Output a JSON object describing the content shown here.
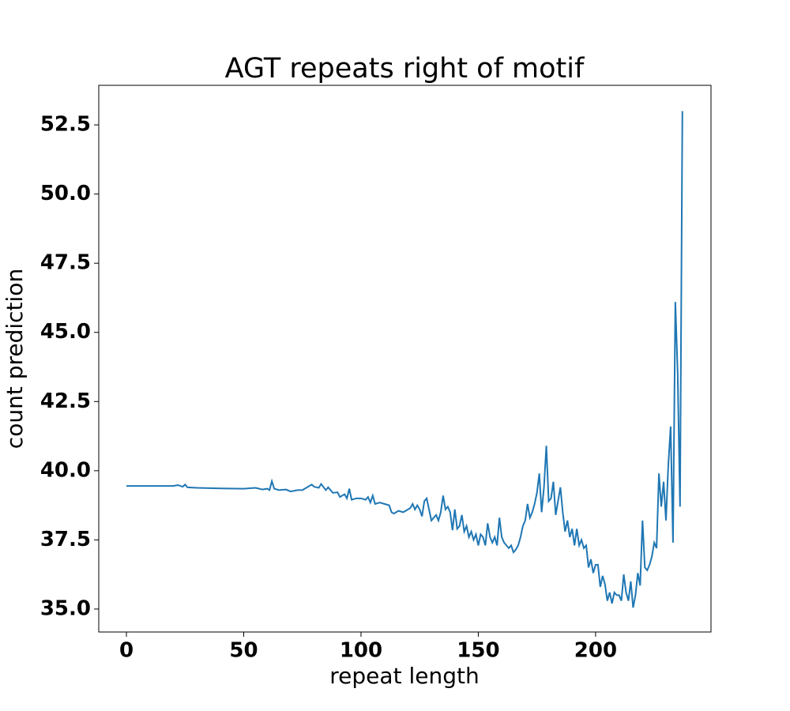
{
  "chart_data": {
    "type": "line",
    "title": "AGT repeats right of motif",
    "xlabel": "repeat length",
    "ylabel": "count prediction",
    "x": [
      0,
      5,
      10,
      15,
      20,
      22,
      24,
      25,
      26,
      30,
      40,
      50,
      55,
      58,
      60,
      61,
      62,
      63,
      65,
      68,
      70,
      73,
      75,
      77,
      79,
      80,
      82,
      83,
      85,
      86,
      88,
      90,
      91,
      93,
      94,
      95,
      96,
      98,
      100,
      102,
      103,
      104,
      105,
      106,
      108,
      110,
      112,
      113,
      114,
      116,
      118,
      120,
      121,
      122,
      123,
      124,
      125,
      126,
      127,
      128,
      129,
      130,
      131,
      132,
      133,
      134,
      135,
      136,
      137,
      138,
      139,
      140,
      141,
      142,
      143,
      144,
      145,
      146,
      147,
      148,
      149,
      150,
      151,
      152,
      153,
      154,
      155,
      156,
      157,
      158,
      159,
      160,
      161,
      162,
      163,
      164,
      165,
      166,
      167,
      168,
      169,
      170,
      171,
      172,
      173,
      174,
      175,
      176,
      177,
      178,
      179,
      180,
      181,
      182,
      183,
      184,
      185,
      186,
      187,
      188,
      189,
      190,
      191,
      192,
      193,
      194,
      195,
      196,
      197,
      198,
      199,
      200,
      201,
      202,
      203,
      204,
      205,
      206,
      207,
      208,
      209,
      210,
      211,
      212,
      213,
      214,
      215,
      216,
      217,
      218,
      219,
      220,
      221,
      222,
      223,
      224,
      225,
      226,
      227,
      228,
      229,
      230,
      231,
      232,
      233,
      234,
      235,
      236,
      237
    ],
    "series": [
      {
        "name": "count prediction",
        "color": "#1f77b4",
        "values": [
          39.45,
          39.45,
          39.45,
          39.45,
          39.45,
          39.48,
          39.42,
          39.5,
          39.4,
          39.38,
          39.36,
          39.35,
          39.38,
          39.32,
          39.35,
          39.3,
          39.62,
          39.35,
          39.3,
          39.32,
          39.25,
          39.3,
          39.3,
          39.4,
          39.5,
          39.42,
          39.38,
          39.52,
          39.3,
          39.4,
          39.2,
          39.22,
          39.05,
          39.15,
          39.0,
          39.35,
          38.95,
          39.0,
          39.0,
          38.95,
          39.05,
          38.85,
          39.1,
          38.8,
          38.85,
          38.8,
          38.75,
          38.5,
          38.45,
          38.55,
          38.5,
          38.6,
          38.65,
          38.8,
          38.6,
          38.75,
          38.6,
          38.35,
          38.9,
          39.0,
          38.6,
          38.2,
          38.3,
          38.4,
          38.2,
          38.5,
          39.1,
          38.6,
          38.7,
          38.5,
          37.85,
          38.6,
          37.9,
          38.0,
          38.4,
          37.8,
          38.0,
          37.6,
          37.8,
          37.5,
          37.7,
          37.3,
          37.7,
          37.6,
          37.3,
          38.1,
          37.6,
          37.4,
          37.6,
          37.3,
          38.3,
          37.6,
          37.4,
          37.3,
          37.2,
          37.3,
          37.05,
          37.15,
          37.3,
          37.6,
          38.0,
          38.2,
          38.8,
          38.3,
          38.5,
          38.8,
          39.2,
          39.9,
          38.5,
          39.4,
          40.9,
          38.9,
          39.0,
          39.6,
          38.4,
          38.9,
          39.4,
          38.5,
          37.8,
          38.2,
          37.6,
          37.9,
          37.3,
          37.9,
          37.3,
          37.5,
          37.2,
          37.3,
          36.5,
          36.8,
          36.3,
          36.6,
          36.6,
          35.8,
          36.2,
          35.9,
          35.3,
          35.6,
          35.2,
          35.6,
          35.5,
          35.5,
          35.3,
          36.25,
          35.6,
          35.3,
          36.0,
          35.05,
          35.5,
          36.3,
          35.85,
          38.2,
          36.5,
          36.4,
          36.6,
          36.9,
          37.4,
          37.2,
          39.9,
          38.7,
          39.6,
          38.2,
          40.2,
          41.6,
          37.4,
          46.1,
          43.5,
          38.7,
          53.0
        ]
      }
    ],
    "xlim": [
      -11.8,
      249.2
    ],
    "ylim": [
      34.17,
      53.93
    ],
    "xticks": [
      0,
      50,
      100,
      150,
      200
    ],
    "yticks": [
      {
        "value": 35,
        "label": "35.0"
      },
      {
        "value": 37.5,
        "label": "37.5"
      },
      {
        "value": 40,
        "label": "40.0"
      },
      {
        "value": 42.5,
        "label": "42.5"
      },
      {
        "value": 45,
        "label": "45.0"
      },
      {
        "value": 47.5,
        "label": "47.5"
      },
      {
        "value": 50,
        "label": "50.0"
      },
      {
        "value": 52.5,
        "label": "52.5"
      }
    ],
    "grid": false
  }
}
